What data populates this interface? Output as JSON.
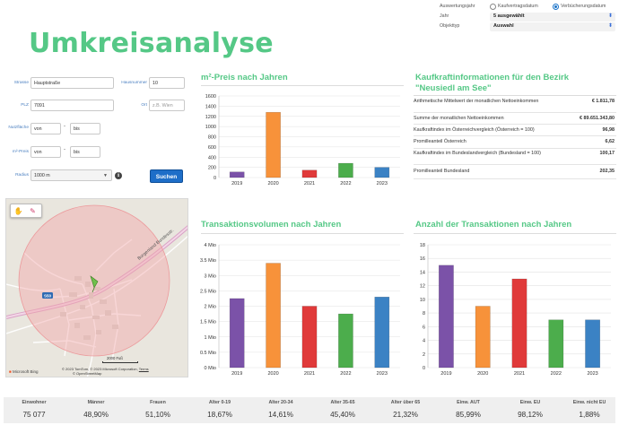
{
  "page": {
    "title": "Umkreisanalyse"
  },
  "filter": {
    "auswertungsjahr_label": "Auswertungsjahr",
    "radio_options": [
      {
        "label": "Kaufvertragsdatum",
        "checked": false
      },
      {
        "label": "Verbücherungsdatum",
        "checked": true
      }
    ],
    "jahr_label": "Jahr",
    "jahr_value": "5 ausgewählt",
    "objekttyp_label": "Objekttyp",
    "objekttyp_value": "Auswahl"
  },
  "form": {
    "strasse_label": "Strasse",
    "strasse_value": "Hauptstraße",
    "hausnummer_label": "Hausnummer",
    "hausnummer_value": "10",
    "plz_label": "PLZ",
    "plz_value": "7091",
    "ort_label": "Ort",
    "ort_placeholder": "z.B. Wien",
    "nutzflaeche_label": "Nutzfläche",
    "nutzflaeche_from": "von",
    "nutzflaeche_to": "bis",
    "m2preis_label": "m²-Preis",
    "m2preis_from": "von",
    "m2preis_to": "bis",
    "radius_label": "Radius",
    "radius_value": "1000 m",
    "info_icon": "i",
    "search_button": "Suchen"
  },
  "map": {
    "tools": [
      "hand-icon",
      "eraser-icon"
    ],
    "road_label": "Burgenland Bundesstr.",
    "scale_label": "2000 Fuß",
    "attribution": "© 2023 TomTom, © 2023 Microsoft Corporation,",
    "attribution_terms": "Terms",
    "attribution2": "© OpenStreetMap",
    "logo": "Microsoft Bing",
    "route_badge": "S50"
  },
  "panels": {
    "m2_title": "m²-Preis nach Jahren",
    "kk_title_line1": "Kaufkraftinformationen für den Bezirk",
    "kk_title_line2": "\"Neusiedl am See\"",
    "tv_title": "Transaktionsvolumen nach Jahren",
    "ta_title": "Anzahl der Transaktionen nach Jahren"
  },
  "kaufkraft": [
    {
      "label": "Arithmetische Mittelwert der monatlichen Nettoeinkommen",
      "value": "€ 1.811,78"
    },
    {
      "label": "Summe der monatlichen Nettoeinkommen",
      "value": "€ 89.651.343,80"
    },
    {
      "label": "Kaufkraftindex im Österreichvergleich (Österreich = 100)",
      "value": "96,98"
    },
    {
      "label": "Promilleanteil Österreich",
      "value": "6,62"
    },
    {
      "label": "Kaufkraftindex im Bundeslandvergleich (Bundesland = 100)",
      "value": "100,17"
    },
    {
      "label": "Promilleanteil Bundesland",
      "value": "202,35"
    }
  ],
  "chart_data": [
    {
      "type": "bar",
      "categories": [
        "2019",
        "2020",
        "2021",
        "2022",
        "2023"
      ],
      "values": [
        110,
        1280,
        145,
        280,
        200
      ],
      "colors": [
        "#7b52a8",
        "#f7923a",
        "#e03a3a",
        "#4cad4c",
        "#3b82c4"
      ],
      "yticks": [
        "0",
        "200",
        "400",
        "600",
        "800",
        "1000",
        "1200",
        "1400",
        "1600"
      ],
      "ylim": [
        0,
        1600
      ]
    },
    {
      "type": "bar",
      "categories": [
        "2019",
        "2020",
        "2021",
        "2022",
        "2023"
      ],
      "values": [
        2.25,
        3.4,
        2.0,
        1.75,
        2.3
      ],
      "colors": [
        "#7b52a8",
        "#f7923a",
        "#e03a3a",
        "#4cad4c",
        "#3b82c4"
      ],
      "yticks": [
        "0 Mio",
        "0.5 Mio",
        "1 Mio",
        "1.5 Mio",
        "2 Mio",
        "2.5 Mio",
        "3 Mio",
        "3.5 Mio",
        "4 Mio"
      ],
      "ylim": [
        0,
        4
      ]
    },
    {
      "type": "bar",
      "categories": [
        "2019",
        "2020",
        "2021",
        "2022",
        "2023"
      ],
      "values": [
        15,
        9,
        13,
        7,
        7
      ],
      "colors": [
        "#7b52a8",
        "#f7923a",
        "#e03a3a",
        "#4cad4c",
        "#3b82c4"
      ],
      "yticks": [
        "0",
        "2",
        "4",
        "6",
        "8",
        "10",
        "12",
        "14",
        "16",
        "18"
      ],
      "ylim": [
        0,
        18
      ]
    }
  ],
  "stats": [
    {
      "label": "Einwohner",
      "value": "75 077"
    },
    {
      "label": "Männer",
      "value": "48,90%"
    },
    {
      "label": "Frauen",
      "value": "51,10%"
    },
    {
      "label": "Alter 0-19",
      "value": "18,67%"
    },
    {
      "label": "Alter 20-34",
      "value": "14,61%"
    },
    {
      "label": "Alter 35-65",
      "value": "45,40%"
    },
    {
      "label": "Alter über 65",
      "value": "21,32%"
    },
    {
      "label": "Einw. AUT",
      "value": "85,99%"
    },
    {
      "label": "Einw. EU",
      "value": "98,12%"
    },
    {
      "label": "Einw. nicht EU",
      "value": "1,88%"
    }
  ]
}
